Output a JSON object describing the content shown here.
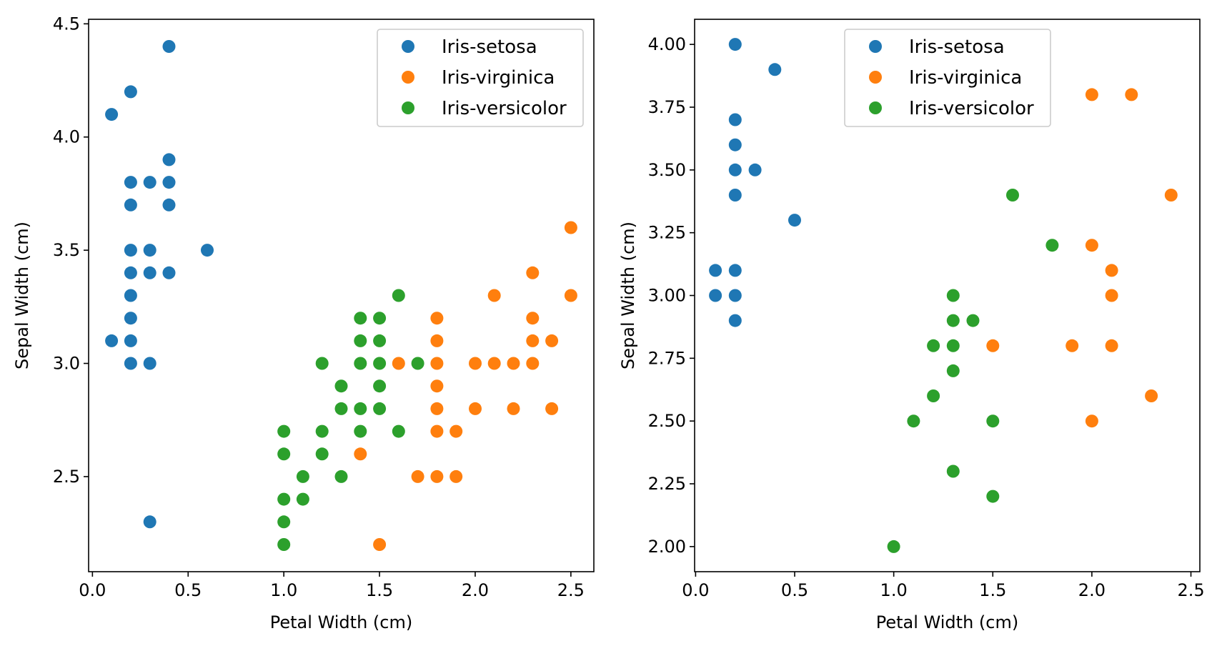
{
  "chart_data": [
    {
      "type": "scatter",
      "title": "",
      "xlabel": "Petal Width (cm)",
      "ylabel": "Sepal Width (cm)",
      "xlim": [
        -0.02,
        2.62
      ],
      "ylim": [
        2.08,
        4.52
      ],
      "xticks": [
        0.0,
        0.5,
        1.0,
        1.5,
        2.0,
        2.5
      ],
      "xtick_labels": [
        "0.0",
        "0.5",
        "1.0",
        "1.5",
        "2.0",
        "2.5"
      ],
      "yticks": [
        2.5,
        3.0,
        3.5,
        4.0,
        4.5
      ],
      "ytick_labels": [
        "2.5",
        "3.0",
        "3.5",
        "4.0",
        "4.5"
      ],
      "grid": false,
      "legend_position": "top-right",
      "series": [
        {
          "name": "Iris-setosa",
          "color": "#1f77b4",
          "points": [
            [
              0.4,
              4.4
            ],
            [
              0.2,
              4.2
            ],
            [
              0.1,
              4.1
            ],
            [
              0.4,
              3.9
            ],
            [
              0.2,
              3.8
            ],
            [
              0.3,
              3.8
            ],
            [
              0.4,
              3.8
            ],
            [
              0.2,
              3.7
            ],
            [
              0.4,
              3.7
            ],
            [
              0.2,
              3.5
            ],
            [
              0.3,
              3.5
            ],
            [
              0.6,
              3.5
            ],
            [
              0.2,
              3.4
            ],
            [
              0.3,
              3.4
            ],
            [
              0.4,
              3.4
            ],
            [
              0.2,
              3.3
            ],
            [
              0.2,
              3.2
            ],
            [
              0.1,
              3.1
            ],
            [
              0.2,
              3.1
            ],
            [
              0.2,
              3.0
            ],
            [
              0.3,
              3.0
            ],
            [
              0.3,
              2.3
            ]
          ]
        },
        {
          "name": "Iris-virginica",
          "color": "#ff7f0e",
          "points": [
            [
              2.5,
              3.6
            ],
            [
              2.3,
              3.4
            ],
            [
              2.1,
              3.3
            ],
            [
              2.5,
              3.3
            ],
            [
              1.8,
              3.2
            ],
            [
              2.3,
              3.2
            ],
            [
              1.8,
              3.1
            ],
            [
              2.3,
              3.1
            ],
            [
              2.4,
              3.1
            ],
            [
              1.6,
              3.0
            ],
            [
              1.8,
              3.0
            ],
            [
              2.0,
              3.0
            ],
            [
              2.1,
              3.0
            ],
            [
              2.2,
              3.0
            ],
            [
              2.3,
              3.0
            ],
            [
              1.8,
              2.9
            ],
            [
              1.8,
              2.8
            ],
            [
              2.0,
              2.8
            ],
            [
              2.2,
              2.8
            ],
            [
              2.4,
              2.8
            ],
            [
              1.8,
              2.7
            ],
            [
              1.9,
              2.7
            ],
            [
              1.4,
              2.6
            ],
            [
              1.7,
              2.5
            ],
            [
              1.8,
              2.5
            ],
            [
              1.9,
              2.5
            ],
            [
              1.5,
              2.2
            ]
          ]
        },
        {
          "name": "Iris-versicolor",
          "color": "#2ca02c",
          "points": [
            [
              1.6,
              3.3
            ],
            [
              1.4,
              3.2
            ],
            [
              1.5,
              3.2
            ],
            [
              1.4,
              3.1
            ],
            [
              1.5,
              3.1
            ],
            [
              1.2,
              3.0
            ],
            [
              1.4,
              3.0
            ],
            [
              1.5,
              3.0
            ],
            [
              1.7,
              3.0
            ],
            [
              1.3,
              2.9
            ],
            [
              1.5,
              2.9
            ],
            [
              1.3,
              2.8
            ],
            [
              1.4,
              2.8
            ],
            [
              1.5,
              2.8
            ],
            [
              1.0,
              2.7
            ],
            [
              1.2,
              2.7
            ],
            [
              1.4,
              2.7
            ],
            [
              1.6,
              2.7
            ],
            [
              1.0,
              2.6
            ],
            [
              1.2,
              2.6
            ],
            [
              1.1,
              2.5
            ],
            [
              1.3,
              2.5
            ],
            [
              1.0,
              2.4
            ],
            [
              1.1,
              2.4
            ],
            [
              1.0,
              2.3
            ],
            [
              1.0,
              2.2
            ]
          ]
        }
      ]
    },
    {
      "type": "scatter",
      "title": "",
      "xlabel": "Petal Width (cm)",
      "ylabel": "Sepal Width (cm)",
      "xlim": [
        -0.005,
        2.545
      ],
      "ylim": [
        1.9,
        4.1
      ],
      "xticks": [
        0.0,
        0.5,
        1.0,
        1.5,
        2.0,
        2.5
      ],
      "xtick_labels": [
        "0.0",
        "0.5",
        "1.0",
        "1.5",
        "2.0",
        "2.5"
      ],
      "yticks": [
        2.0,
        2.25,
        2.5,
        2.75,
        3.0,
        3.25,
        3.5,
        3.75,
        4.0
      ],
      "ytick_labels": [
        "2.00",
        "2.25",
        "2.50",
        "2.75",
        "3.00",
        "3.25",
        "3.50",
        "3.75",
        "4.00"
      ],
      "grid": false,
      "legend_position": "top-center",
      "series": [
        {
          "name": "Iris-setosa",
          "color": "#1f77b4",
          "points": [
            [
              0.2,
              4.0
            ],
            [
              0.4,
              3.9
            ],
            [
              0.2,
              3.7
            ],
            [
              0.2,
              3.6
            ],
            [
              0.2,
              3.5
            ],
            [
              0.3,
              3.5
            ],
            [
              0.2,
              3.4
            ],
            [
              0.5,
              3.3
            ],
            [
              0.1,
              3.1
            ],
            [
              0.2,
              3.1
            ],
            [
              0.1,
              3.0
            ],
            [
              0.2,
              3.0
            ],
            [
              0.2,
              2.9
            ]
          ]
        },
        {
          "name": "Iris-virginica",
          "color": "#ff7f0e",
          "points": [
            [
              2.0,
              3.8
            ],
            [
              2.2,
              3.8
            ],
            [
              2.4,
              3.4
            ],
            [
              2.0,
              3.2
            ],
            [
              2.1,
              3.1
            ],
            [
              2.1,
              3.0
            ],
            [
              1.5,
              2.8
            ],
            [
              1.9,
              2.8
            ],
            [
              2.1,
              2.8
            ],
            [
              2.3,
              2.6
            ],
            [
              2.0,
              2.5
            ]
          ]
        },
        {
          "name": "Iris-versicolor",
          "color": "#2ca02c",
          "points": [
            [
              1.6,
              3.4
            ],
            [
              1.8,
              3.2
            ],
            [
              1.3,
              3.0
            ],
            [
              1.3,
              2.9
            ],
            [
              1.4,
              2.9
            ],
            [
              1.2,
              2.8
            ],
            [
              1.3,
              2.8
            ],
            [
              1.3,
              2.7
            ],
            [
              1.2,
              2.6
            ],
            [
              1.1,
              2.5
            ],
            [
              1.5,
              2.5
            ],
            [
              1.3,
              2.3
            ],
            [
              1.5,
              2.2
            ],
            [
              1.0,
              2.0
            ]
          ]
        }
      ]
    }
  ]
}
